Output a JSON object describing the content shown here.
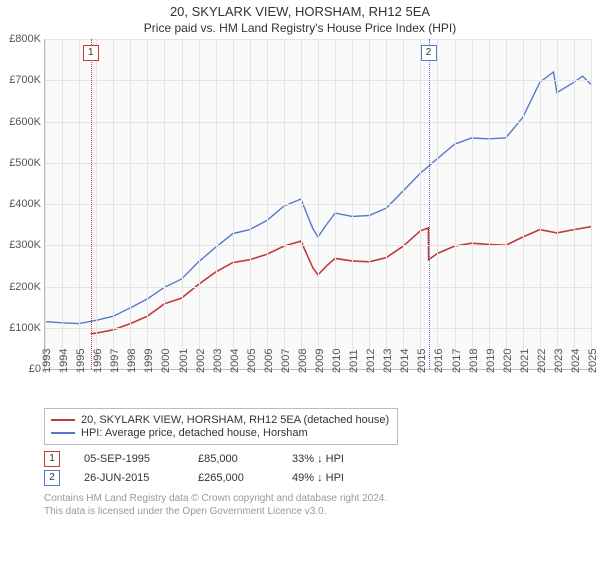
{
  "title": "20, SKYLARK VIEW, HORSHAM, RH12 5EA",
  "subtitle": "Price paid vs. HM Land Registry's House Price Index (HPI)",
  "chart": {
    "background_color": "#fafafa",
    "grid_color": "#e5e5e5",
    "axis_color": "#bbbbbb",
    "y": {
      "min": 0,
      "max": 800000,
      "step": 100000,
      "labels": [
        "£0",
        "£100K",
        "£200K",
        "£300K",
        "£400K",
        "£500K",
        "£600K",
        "£700K",
        "£800K"
      ]
    },
    "x": {
      "min": 1993,
      "max": 2025,
      "labels": [
        "1993",
        "1994",
        "1995",
        "1996",
        "1997",
        "1998",
        "1999",
        "2000",
        "2001",
        "2002",
        "2003",
        "2004",
        "2005",
        "2006",
        "2007",
        "2008",
        "2009",
        "2010",
        "2011",
        "2012",
        "2013",
        "2014",
        "2015",
        "2016",
        "2017",
        "2018",
        "2019",
        "2020",
        "2021",
        "2022",
        "2023",
        "2024",
        "2025"
      ]
    },
    "markers": [
      {
        "n": "1",
        "year": 1995.68,
        "color": "#c33a3a"
      },
      {
        "n": "2",
        "year": 2015.48,
        "color": "#5577cc"
      }
    ],
    "series": [
      {
        "id": "price_paid",
        "color": "#c33a3a",
        "width": 1.6,
        "label": "20, SKYLARK VIEW, HORSHAM, RH12 5EA (detached house)",
        "points": [
          [
            1995.68,
            85000
          ],
          [
            1996,
            87000
          ],
          [
            1997,
            95000
          ],
          [
            1998,
            110000
          ],
          [
            1999,
            128000
          ],
          [
            2000,
            158000
          ],
          [
            2001,
            172000
          ],
          [
            2002,
            205000
          ],
          [
            2003,
            235000
          ],
          [
            2004,
            258000
          ],
          [
            2005,
            265000
          ],
          [
            2006,
            278000
          ],
          [
            2007,
            298000
          ],
          [
            2008,
            310000
          ],
          [
            2008.7,
            245000
          ],
          [
            2009,
            228000
          ],
          [
            2009.5,
            250000
          ],
          [
            2010,
            268000
          ],
          [
            2011,
            262000
          ],
          [
            2012,
            260000
          ],
          [
            2013,
            270000
          ],
          [
            2014,
            298000
          ],
          [
            2015,
            335000
          ],
          [
            2015.47,
            342000
          ],
          [
            2015.48,
            265000
          ],
          [
            2016,
            280000
          ],
          [
            2017,
            298000
          ],
          [
            2018,
            305000
          ],
          [
            2019,
            302000
          ],
          [
            2020,
            300000
          ],
          [
            2021,
            320000
          ],
          [
            2022,
            338000
          ],
          [
            2023,
            330000
          ],
          [
            2024,
            338000
          ],
          [
            2025,
            345000
          ]
        ]
      },
      {
        "id": "hpi",
        "color": "#5577cc",
        "width": 1.4,
        "label": "HPI: Average price, detached house, Horsham",
        "points": [
          [
            1993,
            115000
          ],
          [
            1994,
            112000
          ],
          [
            1995,
            110000
          ],
          [
            1996,
            118000
          ],
          [
            1997,
            128000
          ],
          [
            1998,
            148000
          ],
          [
            1999,
            170000
          ],
          [
            2000,
            198000
          ],
          [
            2001,
            218000
          ],
          [
            2002,
            260000
          ],
          [
            2003,
            295000
          ],
          [
            2004,
            328000
          ],
          [
            2005,
            338000
          ],
          [
            2006,
            360000
          ],
          [
            2007,
            395000
          ],
          [
            2008,
            412000
          ],
          [
            2008.7,
            340000
          ],
          [
            2009,
            320000
          ],
          [
            2009.5,
            350000
          ],
          [
            2010,
            378000
          ],
          [
            2011,
            370000
          ],
          [
            2012,
            372000
          ],
          [
            2013,
            390000
          ],
          [
            2014,
            432000
          ],
          [
            2015,
            475000
          ],
          [
            2016,
            510000
          ],
          [
            2017,
            545000
          ],
          [
            2018,
            560000
          ],
          [
            2019,
            558000
          ],
          [
            2020,
            560000
          ],
          [
            2021,
            610000
          ],
          [
            2022,
            695000
          ],
          [
            2022.8,
            720000
          ],
          [
            2023,
            670000
          ],
          [
            2024,
            695000
          ],
          [
            2024.5,
            710000
          ],
          [
            2025,
            690000
          ]
        ]
      }
    ]
  },
  "sales": [
    {
      "n": "1",
      "date": "05-SEP-1995",
      "price": "£85,000",
      "hpi": "33% ↓ HPI",
      "color": "#c33a3a"
    },
    {
      "n": "2",
      "date": "26-JUN-2015",
      "price": "£265,000",
      "hpi": "49% ↓ HPI",
      "color": "#5577cc"
    }
  ],
  "footer_line1": "Contains HM Land Registry data © Crown copyright and database right 2024.",
  "footer_line2": "This data is licensed under the Open Government Licence v3.0."
}
